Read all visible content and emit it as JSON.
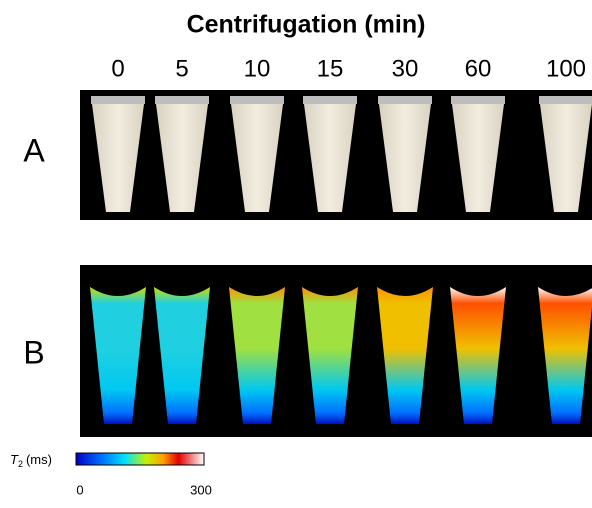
{
  "title": "Centrifugation (min)",
  "columns": [
    0,
    5,
    10,
    15,
    30,
    60,
    100
  ],
  "rows": [
    "A",
    "B"
  ],
  "colorbar": {
    "symbol": "T",
    "subscript": "2",
    "unit": "(ms)",
    "min": 0,
    "max": 300
  }
}
